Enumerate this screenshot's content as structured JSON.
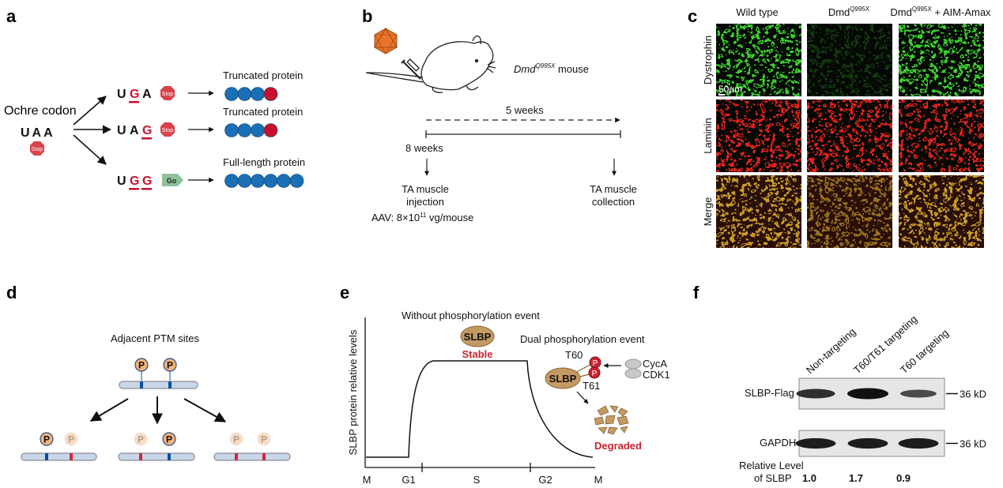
{
  "panel_labels": {
    "a": "a",
    "b": "b",
    "c": "c",
    "d": "d",
    "e": "e",
    "f": "f"
  },
  "panel_a": {
    "ochre_label": "Ochre codon",
    "ochre_codon": "UAA",
    "stop_sign_text": "Stop",
    "go_sign_text": "Go",
    "rows": [
      {
        "codon_bases": [
          "U",
          "G",
          "A"
        ],
        "mutated_index": [
          1
        ],
        "signal": "Stop",
        "outcome": "Truncated protein",
        "blue_beads": 3,
        "red_beads": 1
      },
      {
        "codon_bases": [
          "U",
          "A",
          "G"
        ],
        "mutated_index": [
          2
        ],
        "signal": "Stop",
        "outcome": "Truncated protein",
        "blue_beads": 3,
        "red_beads": 1
      },
      {
        "codon_bases": [
          "U",
          "G",
          "G"
        ],
        "mutated_index": [
          1,
          2
        ],
        "signal": "Go",
        "outcome": "Full-length protein",
        "blue_beads": 6,
        "red_beads": 0
      }
    ],
    "colors": {
      "bead_blue": "#1a6fb5",
      "bead_red": "#c8102e",
      "mutation_red": "#c8102e",
      "stop_red": "#d9434b",
      "go_green": "#8fc19a"
    }
  },
  "panel_b": {
    "mouse_label_italic": "Dmd",
    "mouse_label_sup": "Q995X",
    "mouse_label_rest": " mouse",
    "duration": "5 weeks",
    "start_age": "8 weeks",
    "step1_line1": "TA muscle",
    "step1_line2": "injection",
    "dose_prefix": "AAV: 8×10",
    "dose_exp": "11",
    "dose_suffix": " vg/mouse",
    "step2_line1": "TA muscle",
    "step2_line2": "collection",
    "virus_color": "#e8742a"
  },
  "panel_c": {
    "columns": [
      {
        "main": "Wild type",
        "sup": "",
        "suffix": ""
      },
      {
        "main": "Dmd",
        "sup": "Q995X",
        "suffix": ""
      },
      {
        "main": "Dmd",
        "sup": "Q995X",
        "suffix": " + AIM-Amax"
      }
    ],
    "rows": [
      "Dystrophin",
      "Laminin",
      "Merge"
    ],
    "scale_bar": "50µm",
    "signal_intensity": [
      [
        1.0,
        0.25,
        1.0
      ],
      [
        1.0,
        1.0,
        1.0
      ],
      [
        1.0,
        0.7,
        1.0
      ]
    ]
  },
  "panel_d": {
    "title": "Adjacent PTM sites",
    "p_label": "P",
    "colors": {
      "p_fill": "#f2b27a",
      "active_site": "#0b4fa0",
      "inactive_site": "#d0283a",
      "bar": "#c9d6ea"
    }
  },
  "panel_e": {
    "ylabel": "SLBP protein relative levels",
    "x_ticks": [
      "M",
      "G1",
      "S",
      "G2",
      "M"
    ],
    "without_title": "Without phosphorylation event",
    "protein": "SLBP",
    "stable": "Stable",
    "dual_title": "Dual phosphorylation event",
    "site1": "T60",
    "site2": "T61",
    "p_label": "P",
    "kinase1": "CycA",
    "kinase2": "CDK1",
    "degraded": "Degraded",
    "colors": {
      "protein": "#c49a63",
      "status_red": "#c8242f"
    }
  },
  "panel_f": {
    "lanes": [
      "Non-targeting",
      "T60/T61 targeting",
      "T60 targeting"
    ],
    "blots": [
      {
        "label": "SLBP-Flag",
        "marker": "36 kD",
        "band_strength": [
          0.75,
          1.0,
          0.5
        ]
      },
      {
        "label": "GAPDH",
        "marker": "36 kD",
        "band_strength": [
          0.9,
          0.9,
          0.9
        ]
      }
    ],
    "relative_label_line1": "Relative Level",
    "relative_label_line2": "of SLBP",
    "relative_values": [
      "1.0",
      "1.7",
      "0.9"
    ]
  }
}
